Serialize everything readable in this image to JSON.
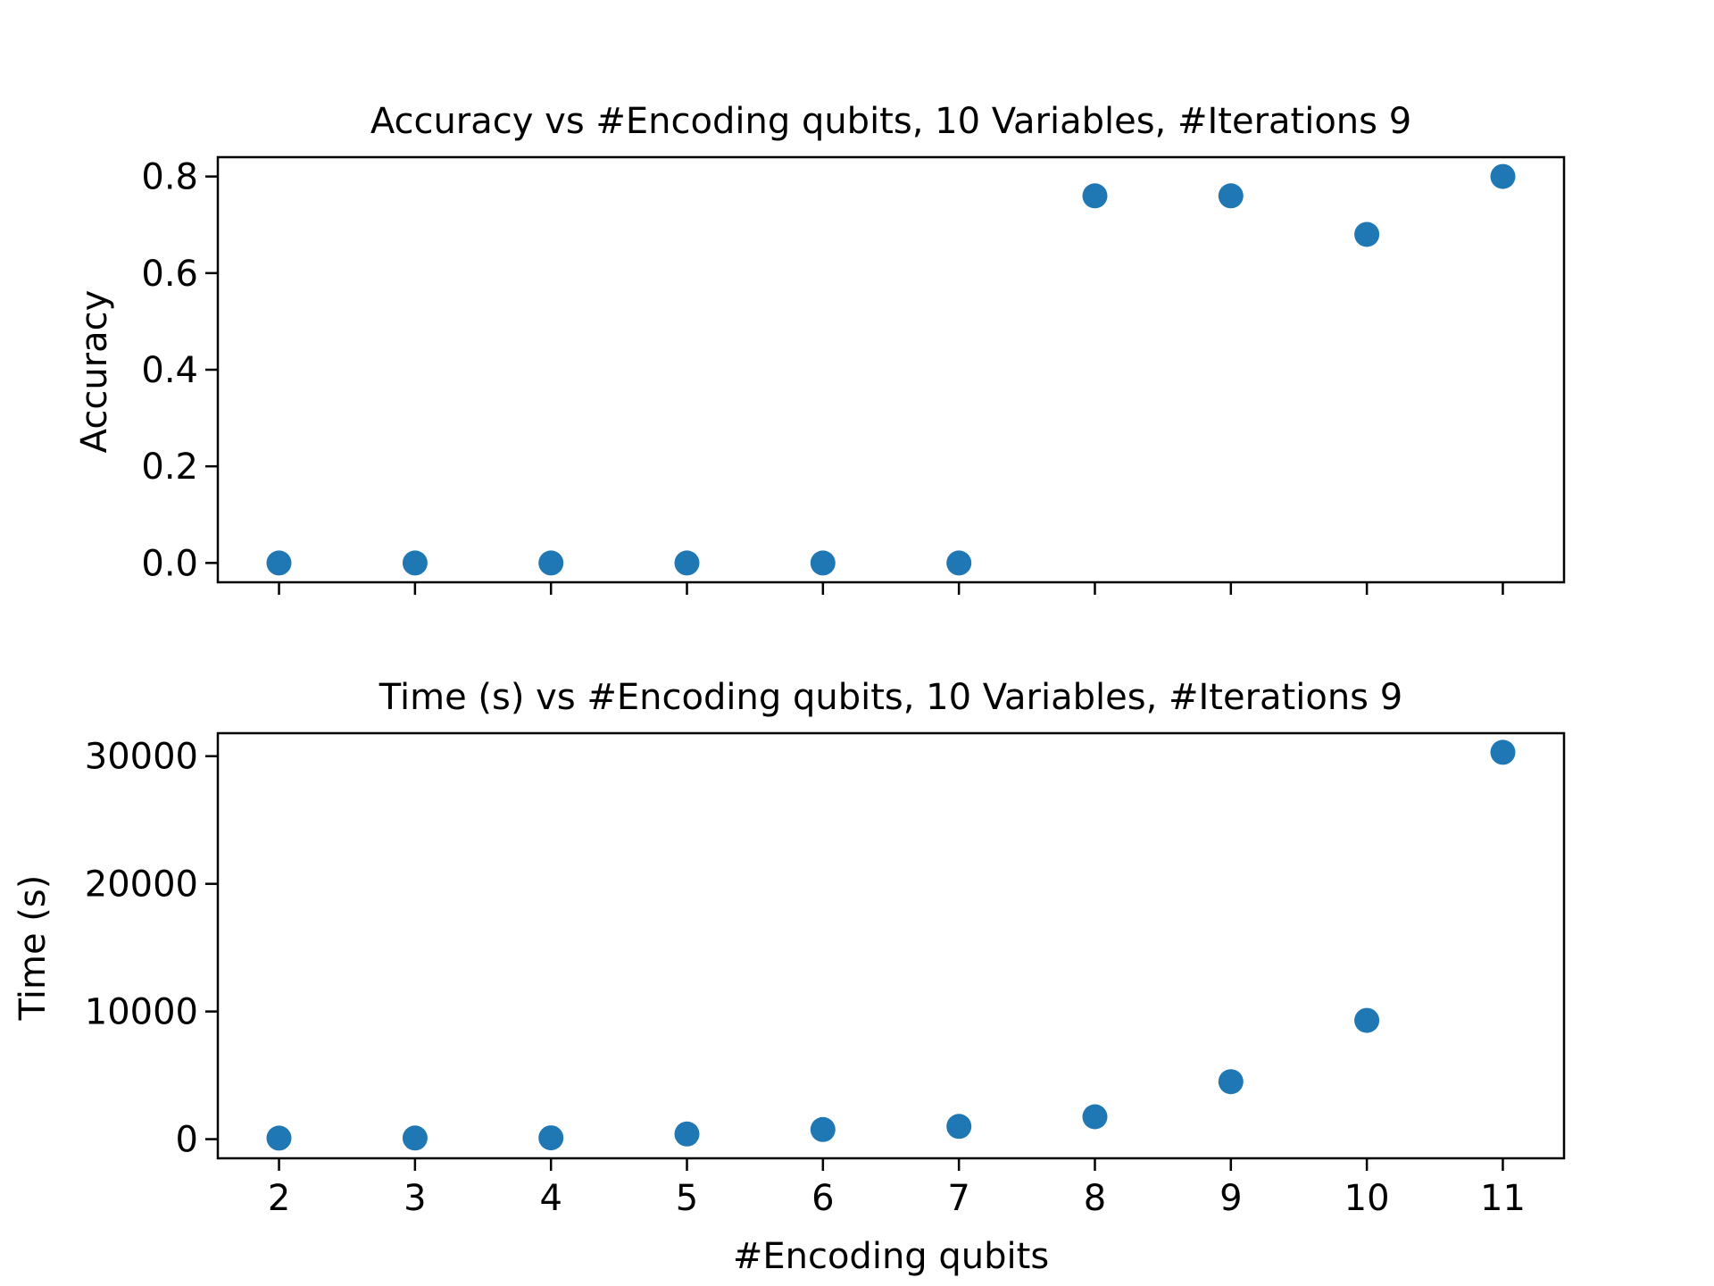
{
  "chart_data": [
    {
      "type": "scatter",
      "title": "Accuracy vs #Encoding qubits, 10 Variables, #Iterations 9",
      "xlabel": "",
      "ylabel": "Accuracy",
      "x": [
        2,
        3,
        4,
        5,
        6,
        7,
        8,
        9,
        10,
        11
      ],
      "y": [
        0.0,
        0.0,
        0.0,
        0.0,
        0.0,
        0.0,
        0.76,
        0.76,
        0.68,
        0.8
      ],
      "xlim": [
        1.55,
        11.45
      ],
      "ylim": [
        -0.04,
        0.84
      ],
      "xticks": [
        2,
        3,
        4,
        5,
        6,
        7,
        8,
        9,
        10,
        11
      ],
      "xtick_labels_visible": false,
      "yticks": [
        0.0,
        0.2,
        0.4,
        0.6,
        0.8
      ],
      "ytick_labels": [
        "0.0",
        "0.2",
        "0.4",
        "0.6",
        "0.8"
      ],
      "grid": false,
      "color": "#1f77b4"
    },
    {
      "type": "scatter",
      "title": "Time (s) vs #Encoding qubits, 10 Variables, #Iterations 9",
      "xlabel": "#Encoding qubits",
      "ylabel": "Time (s)",
      "x": [
        2,
        3,
        4,
        5,
        6,
        7,
        8,
        9,
        10,
        11
      ],
      "y": [
        80,
        90,
        100,
        400,
        750,
        1000,
        1750,
        4500,
        9300,
        30300
      ],
      "xlim": [
        1.55,
        11.45
      ],
      "ylim": [
        -1500,
        31800
      ],
      "xticks": [
        2,
        3,
        4,
        5,
        6,
        7,
        8,
        9,
        10,
        11
      ],
      "xtick_labels": [
        "2",
        "3",
        "4",
        "5",
        "6",
        "7",
        "8",
        "9",
        "10",
        "11"
      ],
      "xtick_labels_visible": true,
      "yticks": [
        0,
        10000,
        20000,
        30000
      ],
      "ytick_labels": [
        "0",
        "10000",
        "20000",
        "30000"
      ],
      "grid": false,
      "color": "#1f77b4"
    }
  ]
}
